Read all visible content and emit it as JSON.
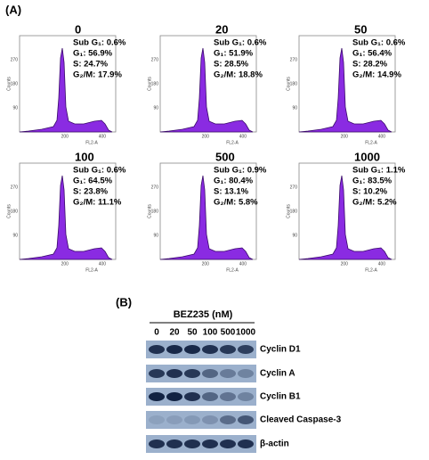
{
  "panel_a": {
    "label": "(A)",
    "plots": [
      {
        "title": "0",
        "stats": [
          "Sub G₁: 0.6%",
          "G₁: 56.9%",
          "S: 24.7%",
          "G₂/M: 17.9%"
        ]
      },
      {
        "title": "20",
        "stats": [
          "Sub G₁: 0.6%",
          "G₁: 51.9%",
          "S: 28.5%",
          "G₂/M: 18.8%"
        ]
      },
      {
        "title": "50",
        "stats": [
          "Sub G₁: 0.6%",
          "G₁: 56.4%",
          "S: 28.2%",
          "G₂/M: 14.9%"
        ]
      },
      {
        "title": "100",
        "stats": [
          "Sub G₁: 0.6%",
          "G₁: 64.5%",
          "S: 23.8%",
          "G₂/M: 11.1%"
        ]
      },
      {
        "title": "500",
        "stats": [
          "Sub G₁: 0.9%",
          "G₁: 80.4%",
          "S: 13.1%",
          "G₂/M: 5.8%"
        ]
      },
      {
        "title": "1000",
        "stats": [
          "Sub G₁: 1.1%",
          "G₁: 83.5%",
          "S: 10.2%",
          "G₂/M: 5.2%"
        ]
      }
    ],
    "y_axis_label": "Counts",
    "x_axis_label": "FL2-A",
    "x_ticks": [
      "200",
      "400"
    ],
    "y_ticks": [
      "90",
      "180",
      "270"
    ]
  },
  "panel_b": {
    "label": "(B)",
    "treatment": "BEZ235 (nM)",
    "lanes": [
      "0",
      "20",
      "50",
      "100",
      "500",
      "1000"
    ],
    "rows": [
      "Cyclin D1",
      "Cyclin A",
      "Cyclin B1",
      "Cleaved Caspase-3",
      "β-actin"
    ]
  }
}
